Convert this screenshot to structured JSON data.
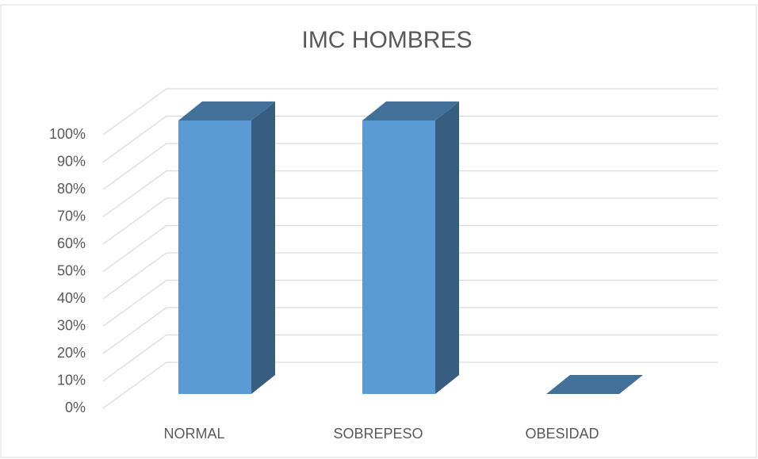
{
  "chart_data": {
    "type": "bar3d",
    "title": "IMC HOMBRES",
    "categories": [
      "NORMAL",
      "SOBREPESO",
      "OBESIDAD"
    ],
    "values": [
      100,
      100,
      0
    ],
    "color": "#5b9bd5",
    "ylim": [
      0,
      100
    ],
    "yticks": [
      {
        "value": 0,
        "label": "0%"
      },
      {
        "value": 10,
        "label": "10%"
      },
      {
        "value": 20,
        "label": "20%"
      },
      {
        "value": 30,
        "label": "30%"
      },
      {
        "value": 40,
        "label": "40%"
      },
      {
        "value": 50,
        "label": "50%"
      },
      {
        "value": 60,
        "label": "60%"
      },
      {
        "value": 70,
        "label": "70%"
      },
      {
        "value": 80,
        "label": "80%"
      },
      {
        "value": 90,
        "label": "90%"
      },
      {
        "value": 100,
        "label": "100%"
      }
    ],
    "grid": true
  }
}
